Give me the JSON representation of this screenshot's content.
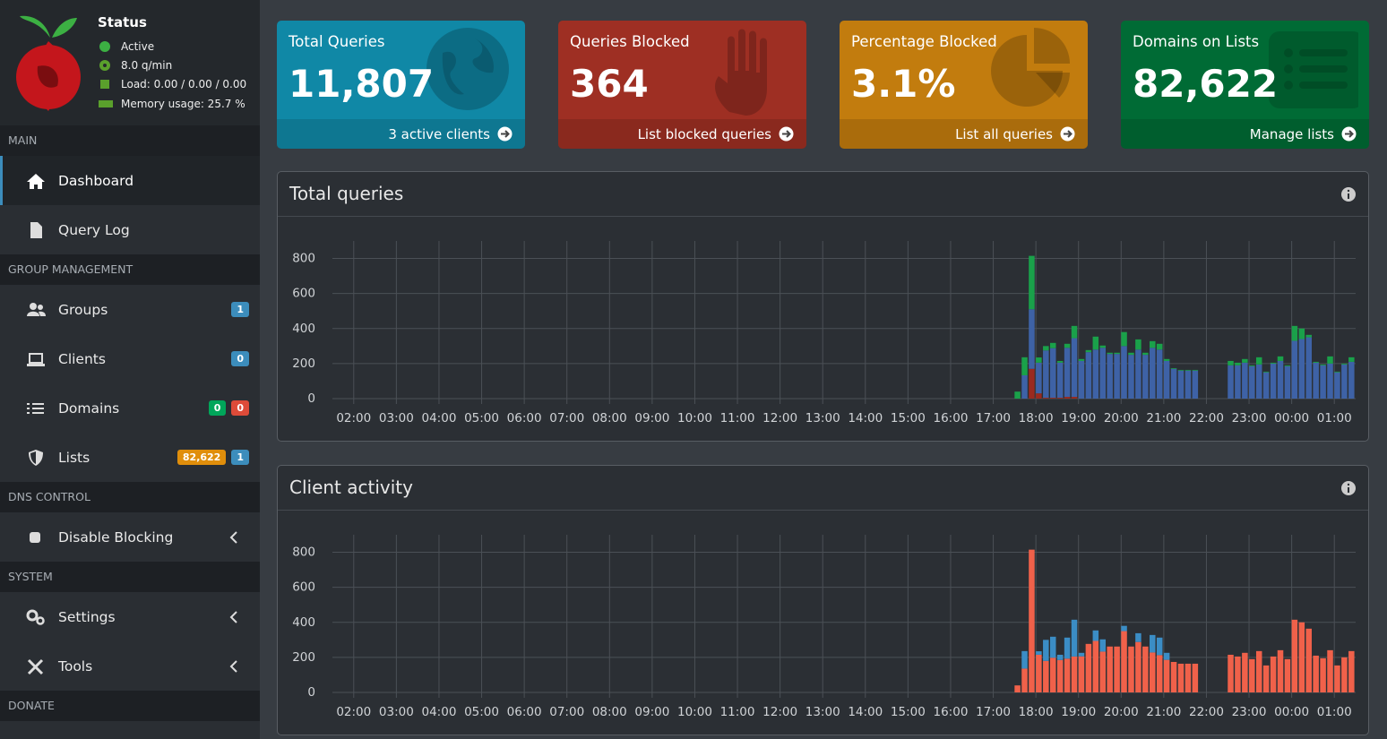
{
  "status": {
    "title": "Status",
    "items": [
      "Active",
      "8.0 q/min",
      "Load: 0.00 / 0.00 / 0.00",
      "Memory usage: 25.7 %"
    ]
  },
  "menu": [
    {
      "header": "MAIN",
      "items": [
        {
          "label": "Dashboard"
        },
        {
          "label": "Query Log"
        }
      ]
    },
    {
      "header": "GROUP MANAGEMENT",
      "items": [
        {
          "label": "Groups",
          "badges": [
            {
              "text": "1",
              "color": "#3c8dbc"
            }
          ]
        },
        {
          "label": "Clients",
          "badges": [
            {
              "text": "0",
              "color": "#3c8dbc"
            }
          ]
        },
        {
          "label": "Domains",
          "badges": [
            {
              "text": "0",
              "color": "#00a65a"
            },
            {
              "text": "0",
              "color": "#dd4b39"
            }
          ]
        },
        {
          "label": "Lists",
          "badges": [
            {
              "text": "82,622",
              "color": "#e08e0b"
            },
            {
              "text": "1",
              "color": "#3c8dbc"
            }
          ]
        }
      ]
    },
    {
      "header": "DNS CONTROL",
      "items": [
        {
          "label": "Disable Blocking"
        }
      ]
    },
    {
      "header": "SYSTEM",
      "items": [
        {
          "label": "Settings"
        },
        {
          "label": "Tools"
        }
      ]
    },
    {
      "header": "DONATE"
    }
  ],
  "cards": [
    {
      "title": "Total Queries",
      "value": "11,807",
      "link": "3 active clients",
      "color": "#1088a6"
    },
    {
      "title": "Queries Blocked",
      "value": "364",
      "link": "List blocked queries",
      "color": "#9e2f23"
    },
    {
      "title": "Percentage Blocked",
      "value": "3.1%",
      "link": "List all queries",
      "color": "#c27c0e"
    },
    {
      "title": "Domains on Lists",
      "value": "82,622",
      "link": "Manage lists",
      "color": "#006b35"
    }
  ],
  "chart_data": [
    {
      "type": "bar",
      "title": "Total queries",
      "stacked": true,
      "grid": true,
      "x": [
        1050,
        1060,
        1070,
        1080,
        1090,
        1100,
        1110,
        1120,
        1130,
        1140,
        1150,
        1160,
        1170,
        1180,
        1190,
        1200,
        1210,
        1220,
        1230,
        1240,
        1250,
        1260,
        1270,
        1280,
        1290,
        1300,
        1350,
        1360,
        1370,
        1380,
        1390,
        1400,
        1410,
        1420,
        1430,
        1440,
        1450,
        1460,
        1470,
        1480,
        1490,
        1500,
        1510,
        1520
      ],
      "series": [
        {
          "color": "#9a2a1f",
          "values": [
            0,
            0,
            170,
            30,
            5,
            5,
            5,
            10,
            10,
            0,
            0,
            0,
            0,
            0,
            0,
            0,
            0,
            0,
            0,
            0,
            0,
            0,
            0,
            0,
            0,
            0,
            0,
            0,
            0,
            0,
            0,
            0,
            0,
            0,
            0,
            0,
            0,
            0,
            0,
            0,
            0,
            0,
            0,
            0
          ]
        },
        {
          "color": "#3e62a6",
          "values": [
            0,
            133,
            340,
            175,
            270,
            283,
            200,
            280,
            335,
            215,
            265,
            280,
            290,
            255,
            255,
            300,
            250,
            280,
            250,
            290,
            280,
            215,
            170,
            160,
            160,
            160,
            190,
            190,
            205,
            185,
            195,
            150,
            200,
            215,
            185,
            330,
            340,
            350,
            205,
            190,
            200,
            150,
            195,
            210
          ]
        },
        {
          "color": "#1aa14a",
          "values": [
            40,
            103,
            305,
            30,
            25,
            30,
            10,
            23,
            70,
            11,
            12,
            74,
            13,
            7,
            7,
            80,
            12,
            58,
            12,
            38,
            33,
            11,
            4,
            4,
            4,
            4,
            25,
            15,
            21,
            5,
            41,
            4,
            5,
            26,
            5,
            85,
            60,
            14,
            5,
            5,
            41,
            4,
            5,
            26
          ]
        }
      ],
      "xlim": [
        90,
        1530
      ],
      "xticks": [
        {
          "value": 120,
          "label": "02:00"
        },
        {
          "value": 180,
          "label": "03:00"
        },
        {
          "value": 240,
          "label": "04:00"
        },
        {
          "value": 300,
          "label": "05:00"
        },
        {
          "value": 360,
          "label": "06:00"
        },
        {
          "value": 420,
          "label": "07:00"
        },
        {
          "value": 480,
          "label": "08:00"
        },
        {
          "value": 540,
          "label": "09:00"
        },
        {
          "value": 600,
          "label": "10:00"
        },
        {
          "value": 660,
          "label": "11:00"
        },
        {
          "value": 720,
          "label": "12:00"
        },
        {
          "value": 780,
          "label": "13:00"
        },
        {
          "value": 840,
          "label": "14:00"
        },
        {
          "value": 900,
          "label": "15:00"
        },
        {
          "value": 960,
          "label": "16:00"
        },
        {
          "value": 1020,
          "label": "17:00"
        },
        {
          "value": 1080,
          "label": "18:00"
        },
        {
          "value": 1140,
          "label": "19:00"
        },
        {
          "value": 1200,
          "label": "20:00"
        },
        {
          "value": 1260,
          "label": "21:00"
        },
        {
          "value": 1320,
          "label": "22:00"
        },
        {
          "value": 1380,
          "label": "23:00"
        },
        {
          "value": 1440,
          "label": "00:00"
        },
        {
          "value": 1500,
          "label": "01:00"
        }
      ],
      "ylim": [
        0,
        900
      ],
      "yticks": [
        0,
        200,
        400,
        600,
        800
      ]
    },
    {
      "type": "bar",
      "title": "Client activity",
      "stacked": true,
      "grid": true,
      "x": [
        1050,
        1060,
        1070,
        1080,
        1090,
        1100,
        1110,
        1120,
        1130,
        1140,
        1150,
        1160,
        1170,
        1180,
        1190,
        1200,
        1210,
        1220,
        1230,
        1240,
        1250,
        1260,
        1270,
        1280,
        1290,
        1300,
        1350,
        1360,
        1370,
        1380,
        1390,
        1400,
        1410,
        1420,
        1430,
        1440,
        1450,
        1460,
        1470,
        1480,
        1490,
        1500,
        1510,
        1520
      ],
      "series": [
        {
          "color": "#f0614a",
          "values": [
            40,
            136,
            815,
            215,
            180,
            198,
            185,
            193,
            205,
            206,
            277,
            294,
            233,
            262,
            262,
            350,
            262,
            288,
            262,
            228,
            213,
            186,
            174,
            164,
            164,
            164,
            215,
            205,
            226,
            190,
            236,
            154,
            205,
            241,
            190,
            415,
            400,
            364,
            210,
            195,
            241,
            154,
            200,
            236
          ]
        },
        {
          "color": "#3b8dc5",
          "values": [
            0,
            100,
            0,
            20,
            120,
            120,
            30,
            120,
            210,
            20,
            0,
            60,
            70,
            0,
            0,
            30,
            0,
            50,
            0,
            100,
            100,
            40,
            0,
            0,
            0,
            0,
            0,
            0,
            0,
            0,
            0,
            0,
            0,
            0,
            0,
            0,
            0,
            0,
            0,
            0,
            0,
            0,
            0,
            0
          ]
        }
      ],
      "xlim": [
        90,
        1530
      ],
      "xticks": [
        {
          "value": 120,
          "label": "02:00"
        },
        {
          "value": 180,
          "label": "03:00"
        },
        {
          "value": 240,
          "label": "04:00"
        },
        {
          "value": 300,
          "label": "05:00"
        },
        {
          "value": 360,
          "label": "06:00"
        },
        {
          "value": 420,
          "label": "07:00"
        },
        {
          "value": 480,
          "label": "08:00"
        },
        {
          "value": 540,
          "label": "09:00"
        },
        {
          "value": 600,
          "label": "10:00"
        },
        {
          "value": 660,
          "label": "11:00"
        },
        {
          "value": 720,
          "label": "12:00"
        },
        {
          "value": 780,
          "label": "13:00"
        },
        {
          "value": 840,
          "label": "14:00"
        },
        {
          "value": 900,
          "label": "15:00"
        },
        {
          "value": 960,
          "label": "16:00"
        },
        {
          "value": 1020,
          "label": "17:00"
        },
        {
          "value": 1080,
          "label": "18:00"
        },
        {
          "value": 1140,
          "label": "19:00"
        },
        {
          "value": 1200,
          "label": "20:00"
        },
        {
          "value": 1260,
          "label": "21:00"
        },
        {
          "value": 1320,
          "label": "22:00"
        },
        {
          "value": 1380,
          "label": "23:00"
        },
        {
          "value": 1440,
          "label": "00:00"
        },
        {
          "value": 1500,
          "label": "01:00"
        }
      ],
      "ylim": [
        0,
        900
      ],
      "yticks": [
        0,
        200,
        400,
        600,
        800
      ]
    }
  ]
}
